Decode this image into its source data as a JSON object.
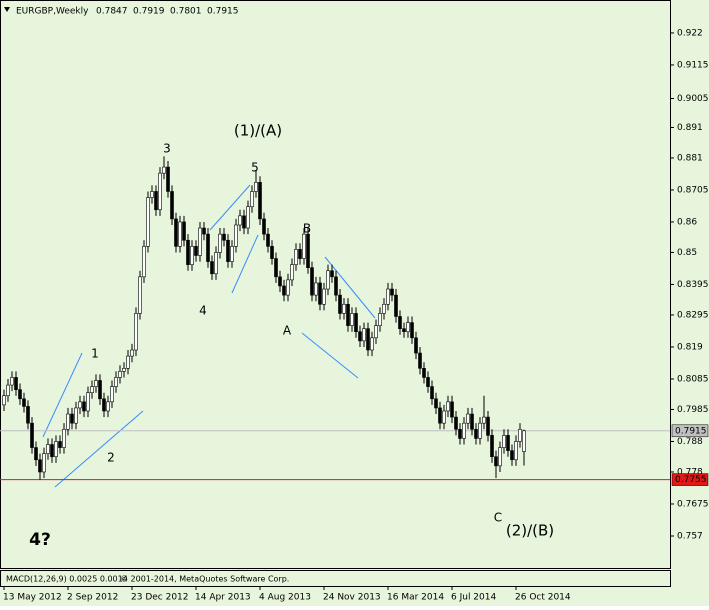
{
  "chart_data": {
    "type": "candlestick",
    "header": {
      "symbol": "EURGBP,Weekly",
      "ohlc": [
        0.7847,
        0.7919,
        0.7801,
        0.7915
      ]
    },
    "categories": [
      "13 May 2012",
      null,
      null,
      null,
      null,
      null,
      null,
      null,
      null,
      null,
      null,
      null,
      null,
      null,
      null,
      null,
      "2 Sep 2012",
      null,
      null,
      null,
      null,
      null,
      null,
      null,
      null,
      null,
      null,
      null,
      null,
      null,
      null,
      null,
      "23 Dec 2012",
      null,
      null,
      null,
      null,
      null,
      null,
      null,
      null,
      null,
      null,
      null,
      null,
      null,
      null,
      null,
      "14 Apr 2013",
      null,
      null,
      null,
      null,
      null,
      null,
      null,
      null,
      null,
      null,
      null,
      null,
      null,
      null,
      null,
      "4 Aug 2013",
      null,
      null,
      null,
      null,
      null,
      null,
      null,
      null,
      null,
      null,
      null,
      null,
      null,
      null,
      null,
      "24 Nov 2013",
      null,
      null,
      null,
      null,
      null,
      null,
      null,
      null,
      null,
      null,
      null,
      null,
      null,
      null,
      null,
      "16 Mar 2014",
      null,
      null,
      null,
      null,
      null,
      null,
      null,
      null,
      null,
      null,
      null,
      null,
      null,
      null,
      null,
      "6 Jul 2014",
      null,
      null,
      null,
      null,
      null,
      null,
      null,
      null,
      null,
      null,
      null,
      null,
      null,
      null,
      null,
      "26 Oct 2014",
      null,
      null
    ],
    "open": [
      0.8,
      0.803,
      0.8065,
      0.809,
      0.805,
      0.802,
      0.7995,
      0.794,
      0.786,
      0.782,
      0.778,
      0.784,
      0.787,
      0.783,
      0.788,
      0.786,
      0.792,
      0.797,
      0.794,
      0.799,
      0.801,
      0.798,
      0.804,
      0.806,
      0.808,
      0.802,
      0.798,
      0.801,
      0.806,
      0.809,
      0.811,
      0.812,
      0.816,
      0.818,
      0.83,
      0.842,
      0.852,
      0.868,
      0.87,
      0.864,
      0.876,
      0.878,
      0.87,
      0.861,
      0.852,
      0.86,
      0.854,
      0.846,
      0.852,
      0.849,
      0.858,
      0.856,
      0.847,
      0.843,
      0.85,
      0.856,
      0.854,
      0.847,
      0.852,
      0.859,
      0.862,
      0.858,
      0.865,
      0.87,
      0.873,
      0.861,
      0.856,
      0.852,
      0.848,
      0.842,
      0.839,
      0.836,
      0.841,
      0.846,
      0.851,
      0.848,
      0.856,
      0.845,
      0.836,
      0.84,
      0.833,
      0.838,
      0.844,
      0.842,
      0.836,
      0.83,
      0.833,
      0.826,
      0.83,
      0.824,
      0.821,
      0.825,
      0.818,
      0.822,
      0.826,
      0.83,
      0.833,
      0.838,
      0.836,
      0.829,
      0.825,
      0.824,
      0.827,
      0.822,
      0.817,
      0.812,
      0.809,
      0.806,
      0.802,
      0.799,
      0.794,
      0.798,
      0.801,
      0.796,
      0.792,
      0.789,
      0.794,
      0.797,
      0.792,
      0.789,
      0.794,
      0.796,
      0.79,
      0.783,
      0.78,
      0.786,
      0.79,
      0.785,
      0.782,
      0.788,
      0.7847
    ],
    "high": [
      0.805,
      0.8085,
      0.811,
      0.811,
      0.807,
      0.804,
      0.8015,
      0.796,
      0.788,
      0.784,
      0.786,
      0.789,
      0.789,
      0.79,
      0.79,
      0.794,
      0.799,
      0.799,
      0.801,
      0.803,
      0.803,
      0.806,
      0.808,
      0.81,
      0.81,
      0.804,
      0.803,
      0.808,
      0.811,
      0.813,
      0.814,
      0.818,
      0.82,
      0.832,
      0.844,
      0.854,
      0.87,
      0.872,
      0.872,
      0.878,
      0.8815,
      0.88,
      0.872,
      0.863,
      0.862,
      0.862,
      0.856,
      0.854,
      0.854,
      0.86,
      0.86,
      0.858,
      0.849,
      0.852,
      0.858,
      0.858,
      0.856,
      0.854,
      0.861,
      0.864,
      0.864,
      0.867,
      0.872,
      0.877,
      0.875,
      0.863,
      0.858,
      0.854,
      0.85,
      0.844,
      0.841,
      0.843,
      0.848,
      0.853,
      0.853,
      0.858,
      0.858,
      0.847,
      0.842,
      0.842,
      0.84,
      0.846,
      0.846,
      0.844,
      0.838,
      0.835,
      0.835,
      0.832,
      0.832,
      0.826,
      0.827,
      0.827,
      0.824,
      0.828,
      0.832,
      0.835,
      0.84,
      0.84,
      0.838,
      0.831,
      0.827,
      0.829,
      0.829,
      0.824,
      0.819,
      0.814,
      0.811,
      0.808,
      0.804,
      0.801,
      0.8,
      0.803,
      0.803,
      0.798,
      0.794,
      0.796,
      0.799,
      0.799,
      0.794,
      0.796,
      0.803,
      0.798,
      0.792,
      0.785,
      0.788,
      0.792,
      0.792,
      0.787,
      0.79,
      0.794,
      0.7919
    ],
    "low": [
      0.798,
      0.801,
      0.8045,
      0.803,
      0.8,
      0.7975,
      0.792,
      0.784,
      0.78,
      0.7755,
      0.776,
      0.782,
      0.781,
      0.781,
      0.784,
      0.784,
      0.79,
      0.792,
      0.792,
      0.797,
      0.796,
      0.796,
      0.802,
      0.804,
      0.8,
      0.796,
      0.796,
      0.799,
      0.804,
      0.807,
      0.809,
      0.81,
      0.814,
      0.816,
      0.828,
      0.84,
      0.85,
      0.866,
      0.862,
      0.862,
      0.874,
      0.868,
      0.859,
      0.85,
      0.85,
      0.852,
      0.844,
      0.844,
      0.847,
      0.847,
      0.854,
      0.845,
      0.841,
      0.841,
      0.848,
      0.852,
      0.845,
      0.845,
      0.85,
      0.857,
      0.856,
      0.856,
      0.863,
      0.868,
      0.859,
      0.854,
      0.85,
      0.846,
      0.84,
      0.837,
      0.834,
      0.834,
      0.839,
      0.844,
      0.846,
      0.846,
      0.843,
      0.834,
      0.834,
      0.831,
      0.831,
      0.836,
      0.84,
      0.834,
      0.828,
      0.828,
      0.824,
      0.824,
      0.822,
      0.819,
      0.819,
      0.816,
      0.816,
      0.82,
      0.824,
      0.828,
      0.831,
      0.834,
      0.827,
      0.823,
      0.822,
      0.822,
      0.82,
      0.815,
      0.81,
      0.807,
      0.804,
      0.8,
      0.797,
      0.792,
      0.792,
      0.796,
      0.794,
      0.79,
      0.787,
      0.787,
      0.792,
      0.79,
      0.787,
      0.787,
      0.792,
      0.788,
      0.781,
      0.776,
      0.778,
      0.784,
      0.783,
      0.78,
      0.78,
      0.786,
      0.7801
    ],
    "close": [
      0.803,
      0.8065,
      0.809,
      0.805,
      0.802,
      0.7995,
      0.794,
      0.786,
      0.782,
      0.778,
      0.784,
      0.787,
      0.783,
      0.788,
      0.786,
      0.792,
      0.797,
      0.794,
      0.799,
      0.801,
      0.798,
      0.804,
      0.806,
      0.808,
      0.802,
      0.798,
      0.801,
      0.806,
      0.809,
      0.811,
      0.812,
      0.816,
      0.818,
      0.83,
      0.842,
      0.852,
      0.868,
      0.87,
      0.864,
      0.876,
      0.878,
      0.87,
      0.861,
      0.852,
      0.86,
      0.854,
      0.846,
      0.852,
      0.849,
      0.858,
      0.856,
      0.847,
      0.843,
      0.85,
      0.856,
      0.854,
      0.847,
      0.852,
      0.859,
      0.862,
      0.858,
      0.865,
      0.87,
      0.873,
      0.861,
      0.856,
      0.852,
      0.848,
      0.842,
      0.839,
      0.836,
      0.841,
      0.846,
      0.851,
      0.848,
      0.856,
      0.845,
      0.836,
      0.84,
      0.833,
      0.838,
      0.844,
      0.842,
      0.836,
      0.83,
      0.833,
      0.826,
      0.83,
      0.824,
      0.821,
      0.825,
      0.818,
      0.822,
      0.826,
      0.83,
      0.833,
      0.838,
      0.836,
      0.829,
      0.825,
      0.824,
      0.827,
      0.822,
      0.817,
      0.812,
      0.809,
      0.806,
      0.802,
      0.799,
      0.794,
      0.798,
      0.801,
      0.796,
      0.792,
      0.789,
      0.794,
      0.797,
      0.792,
      0.789,
      0.794,
      0.796,
      0.79,
      0.783,
      0.78,
      0.786,
      0.79,
      0.785,
      0.782,
      0.788,
      0.792,
      0.7915
    ],
    "ylim": [
      0.7465,
      0.9328
    ],
    "yticks": [
      0.922,
      0.9115,
      0.9005,
      0.891,
      0.881,
      0.8705,
      0.86,
      0.85,
      0.8395,
      0.8295,
      0.819,
      0.8085,
      0.7985,
      0.788,
      0.778,
      0.7675,
      0.757
    ],
    "hlines": [
      {
        "value": 0.7915,
        "color": "#c0c0c0"
      },
      {
        "value": 0.7755,
        "color": "#e01818"
      }
    ],
    "annotations": [
      "(1)/(A)",
      "3",
      "5",
      "B",
      "4",
      "A",
      "1",
      "2",
      "C",
      "(2)/(B)",
      "4?"
    ],
    "indicator": {
      "title": "MACD(12,26,9) 0.0025 0.0014",
      "copyright": "© 2001-2014, MetaQuotes Software Corp."
    }
  }
}
